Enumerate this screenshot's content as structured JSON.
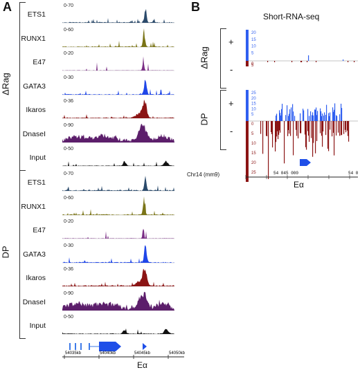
{
  "panel_a": {
    "letter": "A",
    "groups": [
      {
        "name": "ΔRag",
        "tracks": [
          {
            "label": "ETS1",
            "range": "0-70",
            "color": "#2b4a6b"
          },
          {
            "label": "RUNX1",
            "range": "0-60",
            "color": "#7a7417"
          },
          {
            "label": "E47",
            "range": "0-20",
            "color": "#7b2f86"
          },
          {
            "label": "GATA3",
            "range": "0-30",
            "color": "#1f46e8"
          },
          {
            "label": "Ikaros",
            "range": "0-36",
            "color": "#8b1414"
          },
          {
            "label": "DnaseI",
            "range": "0-90",
            "color": "#5c1e6b"
          },
          {
            "label": "Input",
            "range": "0-50",
            "color": "#111111"
          }
        ]
      },
      {
        "name": "DP",
        "tracks": [
          {
            "label": "ETS1",
            "range": "0-70",
            "color": "#2b4a6b"
          },
          {
            "label": "RUNX1",
            "range": "0-60",
            "color": "#7a7417"
          },
          {
            "label": "E47",
            "range": "0-20",
            "color": "#7b2f86"
          },
          {
            "label": "GATA3",
            "range": "0-30",
            "color": "#1f46e8"
          },
          {
            "label": "Ikaros",
            "range": "0-36",
            "color": "#8b1414"
          },
          {
            "label": "DnaseI",
            "range": "0-90",
            "color": "#5c1e6b"
          },
          {
            "label": "Input",
            "range": "0-50",
            "color": "#111111"
          }
        ]
      }
    ],
    "axis_ticks": [
      "54035kb",
      "54040kb",
      "54045kb",
      "54050kb"
    ],
    "element_label": "Eα"
  },
  "panel_b": {
    "letter": "B",
    "title": "Short-RNA-seq",
    "groups": [
      {
        "name": "ΔRag",
        "plus": "+",
        "minus": "-"
      },
      {
        "name": "DP",
        "plus": "+",
        "minus": "-"
      }
    ],
    "pos_ticks_1": [
      "20",
      "15",
      "10",
      "5"
    ],
    "neg_ticks_1": [
      "0",
      "5"
    ],
    "pos_ticks_2": [
      "25",
      "20",
      "15",
      "10",
      "5"
    ],
    "neg_ticks_2": [
      "0",
      "5",
      "10",
      "15",
      "20",
      "25"
    ],
    "chrom": "Chr14 (mm9)",
    "coord": "54 045 000",
    "coord_end": "54 0",
    "element_label": "Eα",
    "positive_color": "#2f5ff0",
    "negative_color": "#8b1414"
  }
}
